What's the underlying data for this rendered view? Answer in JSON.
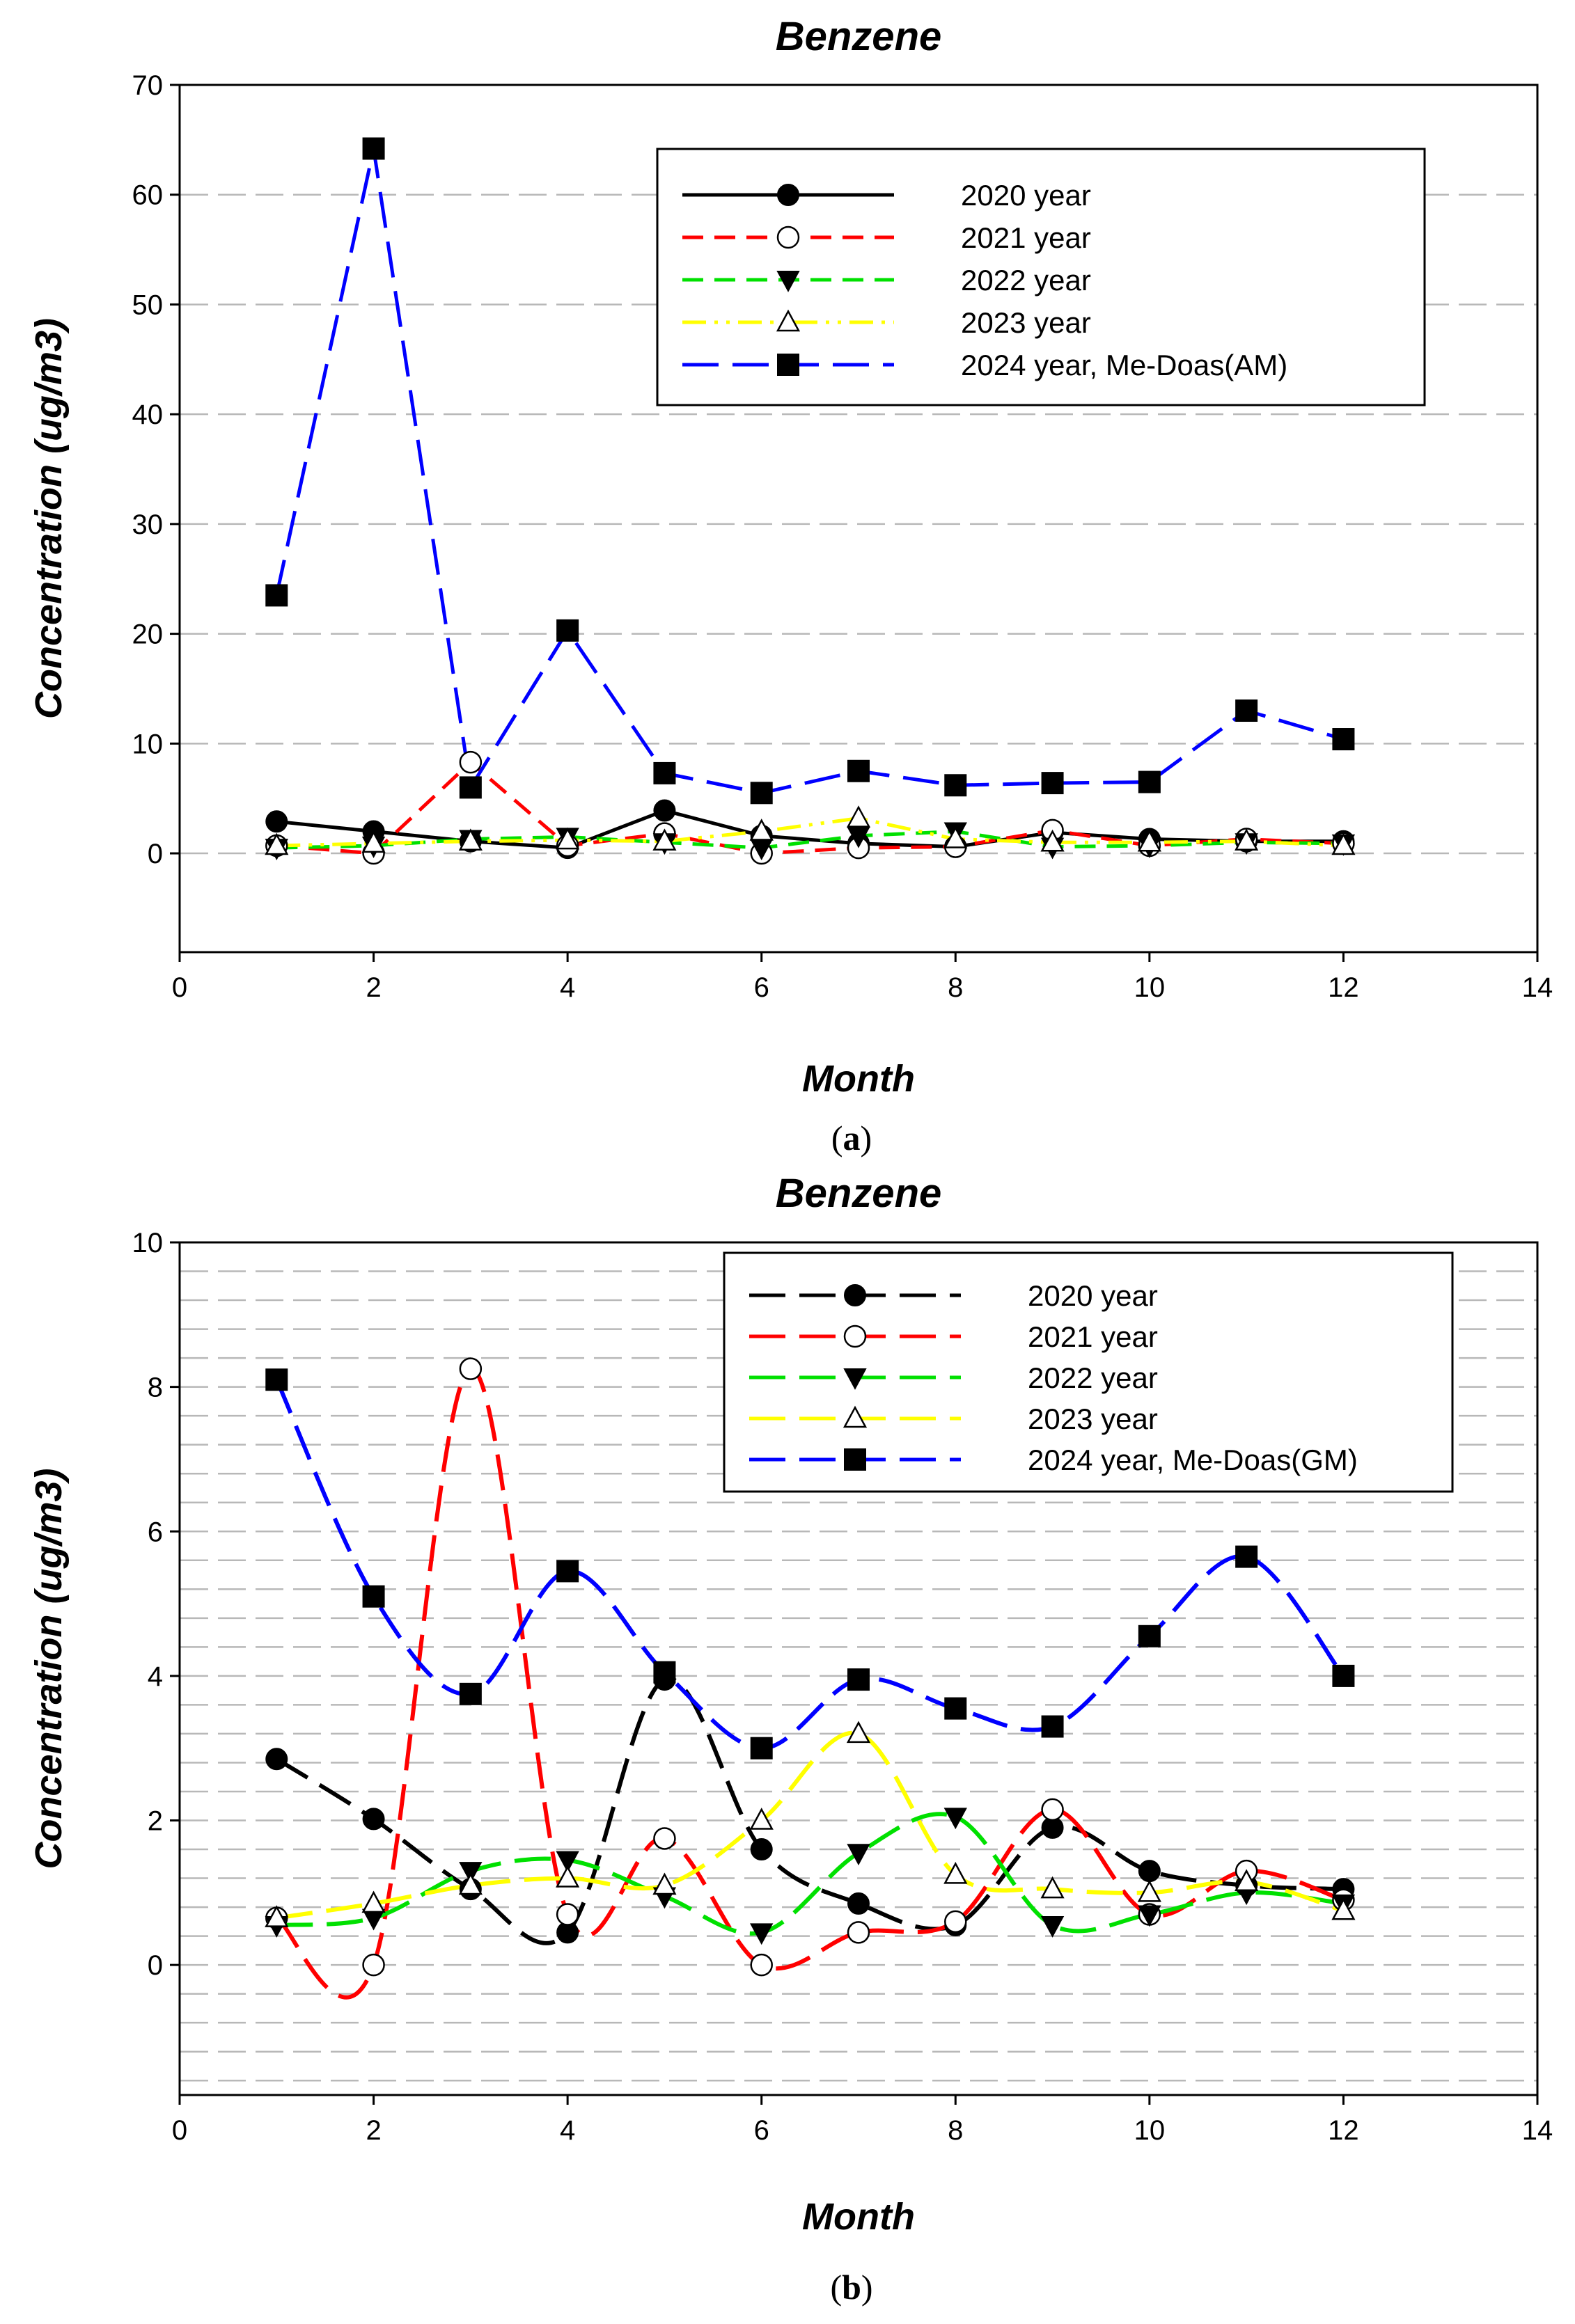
{
  "chart_data": [
    {
      "type": "line",
      "panel_label": "a",
      "title": "Benzene",
      "xlabel": "Month",
      "ylabel": "Concentration (ug/m3)",
      "xlim": [
        0,
        14
      ],
      "ylim": [
        -9,
        70
      ],
      "xticks": [
        0,
        2,
        4,
        6,
        8,
        10,
        12,
        14
      ],
      "yticks": [
        0,
        10,
        20,
        30,
        40,
        50,
        60,
        70
      ],
      "grid": "horizontal dashed",
      "legend_position": "top-right",
      "smooth": false,
      "x": [
        1,
        2,
        3,
        4,
        5,
        6,
        7,
        8,
        9,
        10,
        11,
        12
      ],
      "series": [
        {
          "name": "2020 year",
          "color": "#000000",
          "dash": "solid",
          "marker": "circle-filled",
          "values": [
            2.9,
            2.0,
            1.1,
            0.5,
            3.9,
            1.6,
            0.9,
            0.6,
            1.9,
            1.3,
            1.1,
            1.1
          ]
        },
        {
          "name": "2021 year",
          "color": "#ff0000",
          "dash": "dashed",
          "marker": "circle-open",
          "values": [
            0.7,
            0.0,
            8.3,
            0.7,
            1.8,
            0.0,
            0.5,
            0.6,
            2.1,
            0.7,
            1.3,
            0.9
          ]
        },
        {
          "name": "2022 year",
          "color": "#00e000",
          "dash": "dashed",
          "marker": "triangle-down-filled",
          "values": [
            0.5,
            0.7,
            1.3,
            1.5,
            1.0,
            0.5,
            1.6,
            2.0,
            0.6,
            0.7,
            1.0,
            0.9
          ]
        },
        {
          "name": "2023 year",
          "color": "#ffff00",
          "dash": "dashdotdot",
          "marker": "triangle-up-open",
          "values": [
            0.7,
            0.9,
            1.1,
            1.2,
            1.1,
            2.0,
            3.2,
            1.3,
            1.0,
            1.0,
            1.1,
            0.7
          ]
        },
        {
          "name": "2024 year, Me-Doas(AM)",
          "color": "#0000ff",
          "dash": "longdash",
          "marker": "square-filled",
          "values": [
            23.5,
            64.2,
            6.0,
            20.3,
            7.3,
            5.5,
            7.5,
            6.2,
            6.4,
            6.5,
            13.0,
            10.4
          ]
        }
      ]
    },
    {
      "type": "line",
      "panel_label": "b",
      "title": "Benzene",
      "xlabel": "Month",
      "ylabel": "Concentration (ug/m3)",
      "xlim": [
        0,
        14
      ],
      "ylim": [
        -1.8,
        10
      ],
      "xticks": [
        0,
        2,
        4,
        6,
        8,
        10,
        12,
        14
      ],
      "yticks": [
        0,
        2,
        4,
        6,
        8,
        10
      ],
      "grid": "horizontal dashed",
      "legend_position": "top-right",
      "smooth": true,
      "x": [
        1,
        2,
        3,
        4,
        5,
        6,
        7,
        8,
        9,
        10,
        11,
        12
      ],
      "series": [
        {
          "name": "2020 year",
          "color": "#000000",
          "dash": "longdash",
          "marker": "circle-filled",
          "values": [
            2.85,
            2.02,
            1.05,
            0.45,
            3.95,
            1.6,
            0.85,
            0.55,
            1.9,
            1.3,
            1.1,
            1.05
          ]
        },
        {
          "name": "2021 year",
          "color": "#ff0000",
          "dash": "longdash",
          "marker": "circle-open",
          "values": [
            0.65,
            0.0,
            8.25,
            0.7,
            1.75,
            0.0,
            0.45,
            0.6,
            2.15,
            0.7,
            1.3,
            0.9
          ]
        },
        {
          "name": "2022 year",
          "color": "#00e000",
          "dash": "longdash",
          "marker": "triangle-down-filled",
          "values": [
            0.55,
            0.65,
            1.3,
            1.45,
            0.95,
            0.45,
            1.55,
            2.05,
            0.55,
            0.7,
            1.0,
            0.85
          ]
        },
        {
          "name": "2023 year",
          "color": "#ffff00",
          "dash": "longdash",
          "marker": "triangle-up-open",
          "values": [
            0.65,
            0.85,
            1.1,
            1.2,
            1.1,
            2.0,
            3.2,
            1.25,
            1.05,
            1.0,
            1.15,
            0.75
          ]
        },
        {
          "name": "2024 year, Me-Doas(GM)",
          "color": "#0000ff",
          "dash": "longdash",
          "marker": "square-filled",
          "values": [
            8.1,
            5.1,
            3.75,
            5.45,
            4.05,
            3.0,
            3.95,
            3.55,
            3.3,
            4.55,
            5.65,
            4.0
          ]
        }
      ]
    }
  ]
}
